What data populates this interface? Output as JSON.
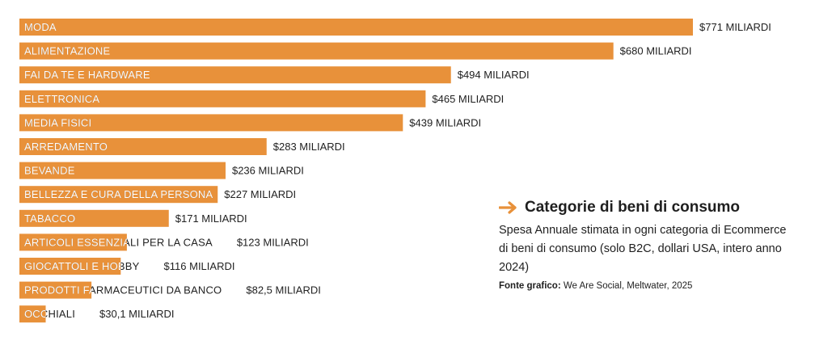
{
  "chart_data": {
    "type": "bar",
    "orientation": "horizontal",
    "categories": [
      "MODA",
      "ALIMENTAZIONE",
      "FAI DA TE E HARDWARE",
      "ELETTRONICA",
      "MEDIA FISICI",
      "ARREDAMENTO",
      "BEVANDE",
      "BELLEZZA E CURA DELLA PERSONA",
      "TABACCO",
      "ARTICOLI ESSENZIALI PER LA CASA",
      "GIOCATTOLI E HOBBY",
      "PRODOTTI FARMACEUTICI DA BANCO",
      "OCCHIALI"
    ],
    "values": [
      771,
      680,
      494,
      465,
      439,
      283,
      236,
      227,
      171,
      123,
      116,
      82.5,
      30.1
    ],
    "value_labels": [
      "$771 MILIARDI",
      "$680 MILIARDI",
      "$494 MILIARDI",
      "$465 MILIARDI",
      "$439 MILIARDI",
      "$283 MILIARDI",
      "$236 MILIARDI",
      "$227 MILIARDI",
      "$171 MILIARDI",
      "$123 MILIARDI",
      "$116 MILIARDI",
      "$82,5 MILIARDI",
      "$30,1 MILIARDI"
    ],
    "bar_color": "#e8913a",
    "label_inside_color": "#ffffff",
    "label_outside_color": "#222222",
    "xlim": [
      0,
      771
    ],
    "grid": false,
    "title": "Categorie di beni di consumo",
    "subtitle": "Spesa Annuale stimata in ogni categoria di Ecommerce di beni di consumo (solo B2C, dollari USA, intero anno 2024)"
  },
  "info": {
    "title": "Categorie di beni di consumo",
    "description": "Spesa Annuale stimata in ogni categoria di Ecommerce di beni di consumo (solo B2C, dollari USA, intero anno 2024)",
    "source_label": "Fonte grafico:",
    "source_text": " We Are Social, Meltwater, 2025",
    "arrow_icon": "arrow-right-icon",
    "accent_color": "#e8913a"
  }
}
